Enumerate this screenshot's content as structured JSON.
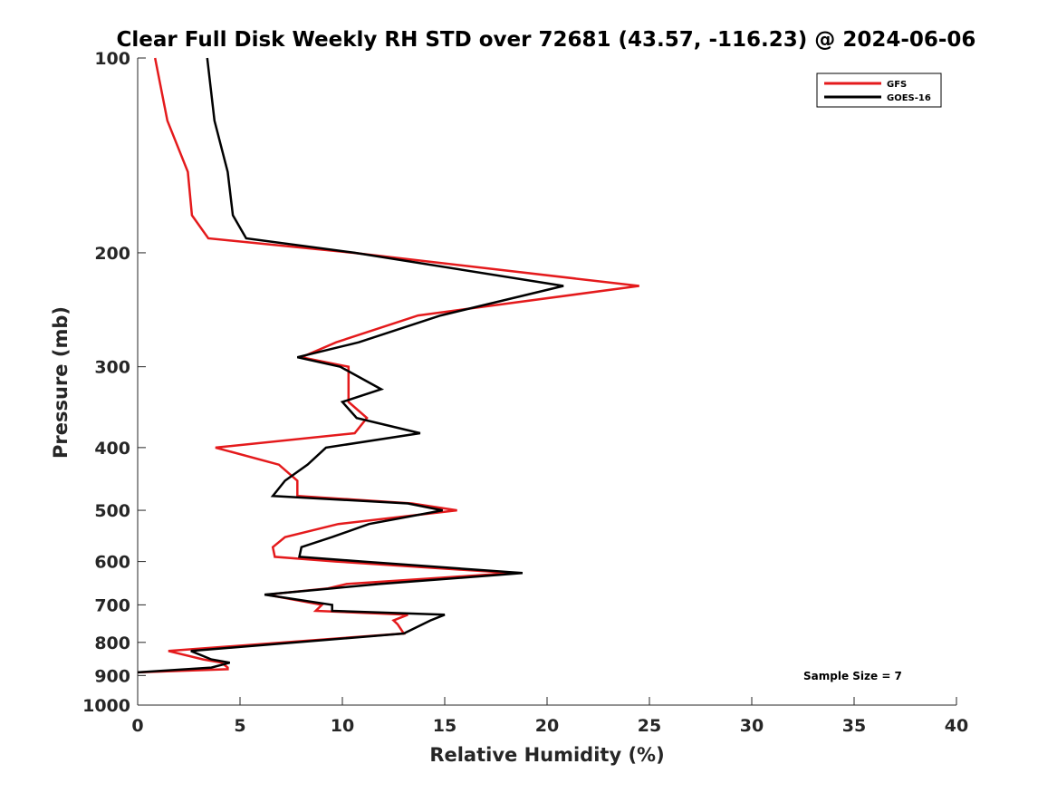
{
  "chart_data": {
    "type": "line",
    "title": "Clear Full Disk Weekly RH STD over 72681 (43.57, -116.23) @ 2024-06-06",
    "xlabel": "Relative Humidity (%)",
    "ylabel": "Pressure (mb)",
    "xlim": [
      0,
      40
    ],
    "ylim": [
      100,
      1000
    ],
    "yscale": "log",
    "yreversed": true,
    "xticks": [
      0,
      5,
      10,
      15,
      20,
      25,
      30,
      35,
      40
    ],
    "yticks": [
      100,
      200,
      300,
      400,
      500,
      600,
      700,
      800,
      900,
      1000
    ],
    "grid": false,
    "legend_position": "top-right",
    "annotation": "Sample Size = 7",
    "series": [
      {
        "name": "GFS",
        "color": "#e41a1c",
        "points": [
          [
            0.85,
            100
          ],
          [
            1.45,
            125
          ],
          [
            2.45,
            150
          ],
          [
            2.65,
            175
          ],
          [
            3.45,
            190
          ],
          [
            10.5,
            200
          ],
          [
            24.5,
            225
          ],
          [
            13.7,
            250
          ],
          [
            9.7,
            275
          ],
          [
            8.0,
            290
          ],
          [
            10.3,
            300
          ],
          [
            10.3,
            325
          ],
          [
            10.3,
            340
          ],
          [
            11.2,
            360
          ],
          [
            10.6,
            380
          ],
          [
            3.8,
            400
          ],
          [
            6.9,
            425
          ],
          [
            7.8,
            450
          ],
          [
            7.8,
            475
          ],
          [
            13.4,
            488
          ],
          [
            15.6,
            500
          ],
          [
            9.8,
            525
          ],
          [
            7.2,
            550
          ],
          [
            6.6,
            570
          ],
          [
            6.7,
            590
          ],
          [
            9.7,
            600
          ],
          [
            18.3,
            625
          ],
          [
            10.2,
            650
          ],
          [
            9.3,
            660
          ],
          [
            6.3,
            675
          ],
          [
            9.0,
            700
          ],
          [
            8.7,
            715
          ],
          [
            13.2,
            725
          ],
          [
            12.5,
            740
          ],
          [
            12.7,
            750
          ],
          [
            13.0,
            775
          ],
          [
            1.5,
            825
          ],
          [
            3.2,
            850
          ],
          [
            4.1,
            860
          ],
          [
            4.4,
            875
          ],
          [
            4.4,
            880
          ],
          [
            0.0,
            890
          ]
        ]
      },
      {
        "name": "GOES-16",
        "color": "#000000",
        "points": [
          [
            3.4,
            100
          ],
          [
            3.75,
            125
          ],
          [
            4.4,
            150
          ],
          [
            4.65,
            175
          ],
          [
            5.3,
            190
          ],
          [
            10.6,
            200
          ],
          [
            20.8,
            225
          ],
          [
            14.8,
            250
          ],
          [
            10.8,
            275
          ],
          [
            7.8,
            290
          ],
          [
            9.9,
            300
          ],
          [
            11.9,
            325
          ],
          [
            10.0,
            340
          ],
          [
            10.7,
            360
          ],
          [
            13.8,
            380
          ],
          [
            9.2,
            400
          ],
          [
            8.3,
            425
          ],
          [
            7.2,
            450
          ],
          [
            6.6,
            475
          ],
          [
            13.2,
            488
          ],
          [
            14.9,
            500
          ],
          [
            11.3,
            525
          ],
          [
            9.5,
            550
          ],
          [
            8.0,
            570
          ],
          [
            7.9,
            590
          ],
          [
            11.0,
            600
          ],
          [
            18.8,
            625
          ],
          [
            11.8,
            650
          ],
          [
            9.5,
            660
          ],
          [
            6.2,
            675
          ],
          [
            9.5,
            700
          ],
          [
            9.5,
            715
          ],
          [
            15.0,
            725
          ],
          [
            14.3,
            740
          ],
          [
            13.0,
            775
          ],
          [
            2.6,
            825
          ],
          [
            3.6,
            850
          ],
          [
            4.5,
            860
          ],
          [
            3.6,
            875
          ],
          [
            0.0,
            890
          ]
        ]
      }
    ]
  }
}
